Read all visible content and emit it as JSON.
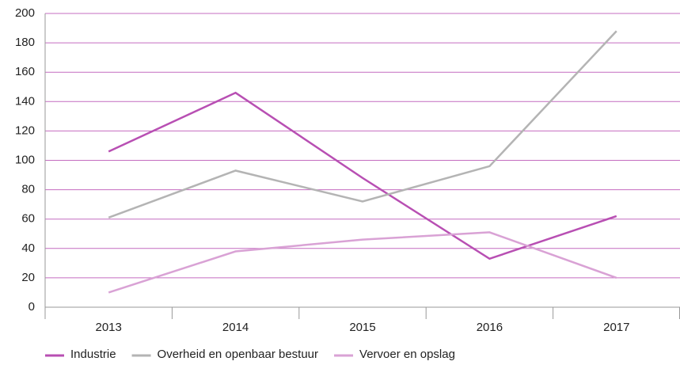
{
  "chart_data": {
    "type": "line",
    "categories": [
      "2013",
      "2014",
      "2015",
      "2016",
      "2017"
    ],
    "series": [
      {
        "name": "Industrie",
        "color": "#b84fb3",
        "values": [
          106,
          146,
          88,
          33,
          62
        ]
      },
      {
        "name": "Overheid en openbaar bestuur",
        "color": "#b4b4b4",
        "values": [
          61,
          93,
          72,
          96,
          188
        ]
      },
      {
        "name": "Vervoer en opslag",
        "color": "#d9a2d5",
        "values": [
          10,
          38,
          46,
          51,
          20
        ]
      }
    ],
    "ylim": [
      0,
      200
    ],
    "yticks": [
      0,
      20,
      40,
      60,
      80,
      100,
      120,
      140,
      160,
      180,
      200
    ],
    "grid": true
  }
}
